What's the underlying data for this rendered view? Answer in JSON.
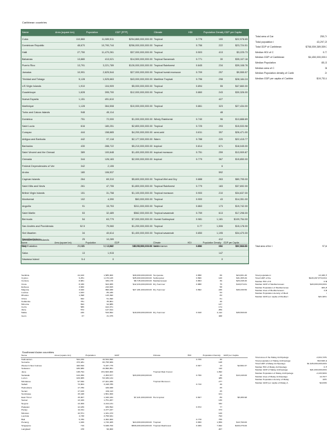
{
  "sections": [
    {
      "title": "Caribbean countries",
      "header": [
        "Name",
        "Area (square km)",
        "Population",
        "GDP (PPP)",
        "Climate",
        "HDI",
        "Population Density",
        "GDP per Capita"
      ],
      "rows": [
        [
          "Cuba",
          "110,860",
          "11,089,511",
          "$254,865,000,000.00",
          "Tropical",
          "0.776",
          "100",
          "$22,978.65"
        ],
        [
          "Dominican Republic",
          "48,670",
          "10,790,744",
          "$256,000,000,000.00",
          "Tropical",
          "0.756",
          "222",
          "$23,724.51"
        ],
        [
          "Haiti",
          "27,750",
          "11,470,261",
          "$37,000,000,000.00",
          "Tropical",
          "0.503",
          "413",
          "$3,225.73"
        ],
        [
          "Bahamas",
          "13,880",
          "413,021",
          "$14,500,000,000.00",
          "Tropical Savannah",
          "0.771",
          "30",
          "$35,107.16"
        ],
        [
          "Puerto Rico",
          "13,791",
          "3,221,789",
          "$126,000,000,000.00",
          "Tropical Rainforest",
          "0.845",
          "234",
          "$39,108.76"
        ],
        [
          "Jamaica",
          "10,991",
          "2,825,544",
          "$27,000,000,000.00",
          "Tropical humid monsoon",
          "0.709",
          "257",
          "$9,555.57"
        ],
        [
          "Trinidad and Tobago",
          "5,128",
          "1,525,663",
          "$43,000,000,000.00",
          "Maritime Tropical",
          "0.796",
          "298",
          "$28,184.24"
        ],
        [
          "US Virgin Islands",
          "1,910",
          "104,909",
          "$5,000,000,000.00",
          "Tropical",
          "0.894",
          "55",
          "$47,660.00"
        ],
        [
          "Guadeloupe",
          "1,628",
          "395,700",
          "$12,000,000,000.00",
          "Tropical",
          "0.860",
          "243",
          "$30,326.00"
        ],
        [
          "Nueva Esparta",
          "1,151",
          "491,610",
          null,
          null,
          null,
          "427",
          null
        ],
        [
          "Martinique",
          "1,128",
          "364,508",
          "$10,000,000,000.00",
          "Tropical",
          "0.861",
          "323",
          "$27,434.00"
        ],
        [
          "Turks and Caicos Islands",
          "948",
          "45,114",
          null,
          null,
          null,
          "48",
          null
        ],
        [
          "Dominica",
          "751",
          "72,000",
          "$1,000,000,000.00",
          "Windy Rainforest",
          "0.740",
          "96",
          "$13,888.89"
        ],
        [
          "Saint Lucia",
          "616",
          "180,251",
          "$2,800,000,000.00",
          "Tropical",
          "0.725",
          "293",
          "$15,533.98"
        ],
        [
          "Curaçao",
          "444",
          "158,665",
          "$4,200,000,000.00",
          "semi-arid",
          "0.811",
          "357",
          "$26,471.00"
        ],
        [
          "Antigua and Barbuda",
          "442",
          "97,118",
          "$2,177,000,000.00",
          "Warm",
          "0.788",
          "220",
          "$22,415.77"
        ],
        [
          "Barbados",
          "430",
          "288,722",
          "$5,210,000,000.00",
          "tropical",
          "0.814",
          "671",
          "$18,045.00"
        ],
        [
          "Saint Vincent and the Grenadines",
          "389",
          "100,648",
          "$1,400,000,000.00",
          "tropical monsoon",
          "0.751",
          "259",
          "$13,909.87"
        ],
        [
          "Grenada",
          "344",
          "126,183",
          "$2,000,000,000.00",
          "tropical",
          "0.779",
          "367",
          "$15,850.00"
        ],
        [
          "Federal Dependencies of Venezuela",
          "342",
          "2,155",
          null,
          null,
          null,
          "6",
          null
        ],
        [
          "Aruba",
          "180",
          "106,537",
          null,
          null,
          null,
          "592",
          null
        ],
        [
          "Cayman Islands",
          "264",
          "69,310",
          "$5,600,000,000.00",
          "Tropical Wet and Dry",
          "0.888",
          "263",
          "$80,795.00"
        ],
        [
          "Saint Kitts and Nevis",
          "261",
          "47,755",
          "$1,800,000,000.00",
          "Tropical Rainforest",
          "0.779",
          "183",
          "$37,692.00"
        ],
        [
          "British Virgin Islands",
          "151",
          "31,758",
          "$1,100,000,000.00",
          "Tropical monsoon",
          "0.900",
          "210",
          "$34,637.00"
        ],
        [
          "Montserrat",
          "102",
          "4,390",
          "$63,000,000.00",
          "Tropical",
          "0.900",
          "43",
          "$14,351.00"
        ],
        [
          "Anguilla",
          "91",
          "15,753",
          "$311,000,000.00",
          "Tropical",
          "0.863",
          "173",
          "$19,742.00"
        ],
        [
          "Saint Martin",
          "53",
          "32,489",
          "$562,000,000.00",
          "Tropical savannah",
          "0.759",
          "613",
          "$17,298.00"
        ],
        [
          "Bermuda",
          "54",
          "63,779",
          "$7,000,000,000.00",
          "Humid Subtropical",
          "0.981",
          "1,181",
          "$109,754.00"
        ],
        [
          "San Andrés and Providencia",
          "52.5",
          "79,060",
          "$1,200,000,000.00",
          "Tropical",
          "0.77",
          "1,506",
          "$15,178.00"
        ],
        [
          "Sint Maarten",
          "34",
          "40,614",
          "$1,400,000,000.00",
          "Tropical savannah",
          "0.850",
          "1,195",
          "$34,470.00"
        ],
        [
          "Saint Barthélemy",
          "25",
          "10,289",
          null,
          null,
          null,
          "412",
          null
        ],
        [
          "Sint Eustatius",
          "21",
          "3,242",
          "$100,000,000.00",
          "Arid",
          "0.850",
          "154",
          "$30,845.00"
        ],
        [
          "Saba",
          "13",
          "1,915",
          null,
          null,
          null,
          "147",
          null
        ],
        [
          "Navassa Island",
          "5.4",
          "0",
          null,
          null,
          null,
          "0",
          null
        ]
      ],
      "stats": [
        [
          "Total area of Car",
          "250,741"
        ],
        [
          "Total population i",
          "43,297,204"
        ],
        [
          "Total GDP of Caribbean",
          "$758,059,389,559.35"
        ],
        [
          "Median HDI of C",
          "0.778"
        ],
        [
          "Median GDP of Caribbean",
          "$4,450,000,000.00"
        ],
        [
          "Median Population",
          "85,156"
        ],
        [
          "Median area of C",
          "386"
        ],
        [
          "Median Population density of Carib",
          "246"
        ],
        [
          "Median GDP per capita of Caribbe",
          "$19,751.82"
        ]
      ]
    },
    {
      "title": "Mediterranean islands",
      "header": [
        "Name",
        "Area (square km)",
        "Population",
        "GDP",
        "Climate",
        "HDI",
        "Population Density",
        "GDP per Capita"
      ],
      "rows": [
        [
          "Sicily",
          "25,832",
          "5,012,860",
          "$88,735,000,000.00",
          "Mediterranean",
          "0.856",
          "194",
          "$17,564.83"
        ]
      ],
      "stats": [
        [
          "Total area of the I",
          "97,461"
        ]
      ]
    },
    {
      "rows": [
        [
          "Sardinia",
          "24,100",
          "1,585,000",
          "$39,000,000,000.00",
          "Temperate",
          "0.858",
          "66",
          "$24,601.40"
        ],
        [
          "Cyprus",
          "9,251",
          "1,170,125",
          "$35,000,000,000.00",
          "Subtropical",
          "0.896",
          "126",
          "$31,365.29"
        ],
        [
          "Corsica",
          "8,681",
          "339,178",
          "$8,745,000,000.00",
          "Mediterranean",
          "0.863",
          "39",
          "$26,348.40"
        ],
        [
          "Crete",
          "8,336",
          "623,065",
          "$12,234,000,000.00",
          "Dry Summer",
          "0.888",
          "75",
          "$19,674.61"
        ],
        [
          "Euboea",
          "3,660",
          "210,815",
          null,
          null,
          null,
          "58",
          null
        ],
        [
          "Majorca",
          "3,640",
          "896,038",
          "$27,181,000,000.00",
          "Dry Summer",
          "0.892",
          "246",
          "$30,339.56"
        ],
        [
          "Lesbos",
          "1,633",
          "86,436",
          null,
          null,
          null,
          "53",
          null
        ],
        [
          "Rhodes",
          "1,398",
          "115,490",
          null,
          null,
          null,
          "83",
          null
        ],
        [
          "Chios",
          "842",
          "51,390",
          null,
          null,
          null,
          "61",
          null
        ],
        [
          "Kefalonia",
          "781",
          "35,801",
          null,
          null,
          null,
          "46",
          null
        ],
        [
          "Minorca",
          "694",
          "94,885",
          null,
          null,
          null,
          "137",
          null
        ],
        [
          "Corfu",
          "585",
          "102,071",
          null,
          null,
          null,
          "174",
          null
        ],
        [
          "Ibiza",
          "572",
          "147,914",
          null,
          null,
          null,
          "259",
          null
        ],
        [
          "Malta",
          "246",
          "519,562",
          "$19,000,000,000.00",
          "Dry Summer",
          "0.918",
          "2,112",
          "$36,569.00"
        ],
        [
          "Gozo",
          "67",
          "31,375",
          null,
          null,
          null,
          "468",
          null
        ]
      ],
      "stats": [
        [
          "Total population i",
          "13,438,761"
        ],
        [
          "Total GDP of the",
          "$229,497,873,034.00"
        ],
        [
          "Median HDI of th",
          "0.888"
        ],
        [
          "Median GDP of Mediterranean",
          "$20,000,000,000.00"
        ],
        [
          "Median Population of Mediterranea",
          "406,259"
        ],
        [
          "Median Area of Mediterranean",
          "3,660"
        ],
        [
          "Median Population density of Medi",
          "82"
        ],
        [
          "Median GDP per capita of Mediterr",
          "$21,983.24"
        ]
      ]
    },
    {
      "title": "Southeast Asian countries",
      "header": [
        "Name",
        "Area (square km)",
        "Population",
        "GDP",
        "Climate",
        "HDI",
        "Population Density",
        "GDP per Capita"
      ],
      "rows": [
        [
          "Kalimantan",
          "544,150",
          "16,544,696",
          null,
          null,
          "0.706",
          "30",
          null
        ],
        [
          "Sumatra",
          "473,481",
          "60,795,669",
          null,
          null,
          null,
          "128",
          null
        ],
        [
          "Western New Guinea",
          "420,540",
          "5,437,775",
          null,
          null,
          "0.637",
          "13",
          "$4,582.37"
        ],
        [
          "Sulawesi",
          "180,680",
          "19,896,951",
          null,
          null,
          null,
          "110",
          null
        ],
        [
          "Java",
          "138,794",
          "151,600,000",
          null,
          "Tropical Rain Forest",
          null,
          "1,092",
          null
        ],
        [
          "Sarawak",
          "124,450",
          "2,453,677",
          "$33,000,000,000.00",
          null,
          "0.796",
          "20",
          "$13,449.00"
        ],
        [
          "Luzon",
          "109,965",
          "53,336,134",
          null,
          null,
          null,
          "485",
          null
        ],
        [
          "Mindanao",
          "97,530",
          "27,021,036",
          null,
          "Tropical Monsoon",
          null,
          "277",
          null
        ],
        [
          "Sabah",
          "73,904",
          "3,418,785",
          null,
          null,
          "0.710",
          "46",
          null
        ],
        [
          "Halmahera",
          "17,780",
          "449,938",
          null,
          null,
          null,
          "25",
          null
        ],
        [
          "Seram",
          "17,100",
          "434,113",
          null,
          null,
          null,
          "25",
          null
        ],
        [
          "Sumbawa",
          "15,448",
          "1,561,300",
          null,
          null,
          null,
          "101",
          null
        ],
        [
          "East Timor",
          "15,007",
          "1,340,434",
          "$7,221,000,000.00",
          "Hot tropical",
          "0.607",
          "89",
          "$5,386.98"
        ],
        [
          "Samar",
          "13,429",
          "1,751,267",
          null,
          null,
          null,
          "130",
          null
        ],
        [
          "Negros",
          "13,309",
          "4,414,131",
          null,
          null,
          null,
          "332",
          null
        ],
        [
          "Palawan",
          "12,189",
          "939,594",
          null,
          null,
          "0.672",
          "77",
          null
        ],
        [
          "Panay",
          "12,011",
          "4,477,247",
          null,
          null,
          null,
          "373",
          null
        ],
        [
          "Mindoro",
          "10,571",
          "1,331,473",
          null,
          null,
          null,
          "126",
          null
        ],
        [
          "Lombok",
          "4,738",
          "3,758,631",
          null,
          null,
          null,
          "793",
          null
        ],
        [
          "Bali",
          "5,780",
          "4,362,000",
          null,
          null,
          "0.778",
          "755",
          null
        ],
        [
          "Penang",
          "1,049",
          "1,740,405",
          "$24,000,000,000.00",
          "Tropical",
          "0.830",
          "1,659",
          "$13,790.00"
        ],
        [
          "Singapore",
          "719",
          "5,638,700",
          "$566,000,000,000.00",
          "Tropical Rainforest",
          "0.939",
          "7,842",
          "$100,376.00"
        ],
        [
          "Langkawi",
          "478",
          "99,000",
          null,
          null,
          null,
          "207",
          null
        ]
      ],
      "stats": [
        [
          "Total area of the Malay Archipelago",
          "2,004,725.62"
        ],
        [
          "Total population of Malay Archipelago",
          "393,848,420"
        ],
        [
          "Total GDP of Malay Archipelago",
          "$1,926,000,000,000.00"
        ],
        [
          "Median HDI of Malay Archipelago",
          "0.706"
        ],
        [
          "Median GDP of Malay Archipelago",
          "$21,000,000,000.00"
        ],
        [
          "Median Population of Malay Archipelago",
          "2,433,960.00"
        ],
        [
          "Median Area of Malay Archipelago",
          "14,707.57"
        ],
        [
          "Median Population density of Malay",
          "165.95"
        ],
        [
          "Median GDP per capita of Malay A",
          "$4,638.09"
        ]
      ]
    }
  ]
}
